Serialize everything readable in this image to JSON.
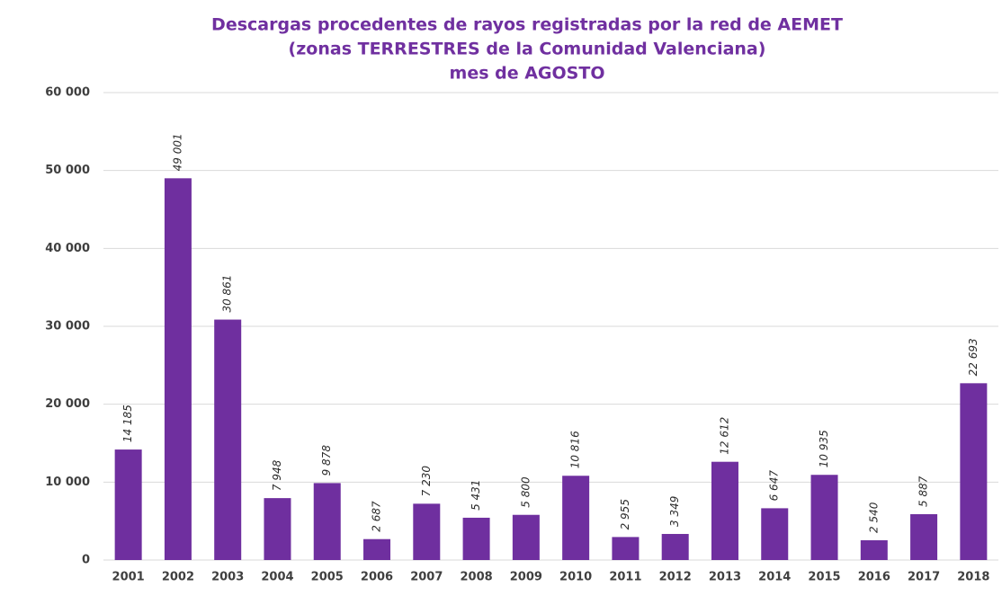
{
  "chart_data": {
    "type": "bar",
    "title": [
      "Descargas procedentes de rayos registradas por la red de AEMET",
      "(zonas TERRESTRES de la Comunidad Valenciana)",
      "mes de AGOSTO"
    ],
    "categories": [
      "2001",
      "2002",
      "2003",
      "2004",
      "2005",
      "2006",
      "2007",
      "2008",
      "2009",
      "2010",
      "2011",
      "2012",
      "2013",
      "2014",
      "2015",
      "2016",
      "2017",
      "2018"
    ],
    "values": [
      14185,
      49001,
      30861,
      7948,
      9878,
      2687,
      7230,
      5431,
      5800,
      10816,
      2955,
      3349,
      12612,
      6647,
      10935,
      2540,
      5887,
      22693
    ],
    "value_labels": [
      "14 185",
      "49 001",
      "30 861",
      "7 948",
      "9 878",
      "2 687",
      "7 230",
      "5 431",
      "5 800",
      "10 816",
      "2 955",
      "3 349",
      "12 612",
      "6 647",
      "10 935",
      "2 540",
      "5 887",
      "22 693"
    ],
    "color": "#6f2f9f",
    "ylim": [
      0,
      60000
    ],
    "yticks": [
      0,
      {
        "value": 10000,
        "label": "10 000"
      },
      {
        "value": 20000,
        "label": "20 000"
      },
      {
        "value": 30000,
        "label": "30 000"
      },
      {
        "value": 40000,
        "label": "40 000"
      },
      {
        "value": 50000,
        "label": "50 000"
      },
      {
        "value": 60000,
        "label": "60 000"
      }
    ],
    "grid": true
  }
}
